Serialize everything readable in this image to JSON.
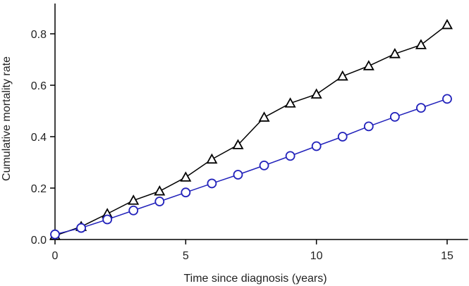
{
  "chart_data": {
    "type": "line",
    "title": "",
    "xlabel": "Time since diagnosis (years)",
    "ylabel": "Cumulative mortality rate",
    "xlim": [
      0,
      15.8
    ],
    "ylim": [
      0,
      0.93
    ],
    "x_ticks": [
      0,
      5,
      10,
      15
    ],
    "x_tick_labels": [
      "0",
      "5",
      "10",
      "15"
    ],
    "y_ticks": [
      0,
      0.2,
      0.4,
      0.6,
      0.8
    ],
    "y_tick_labels": [
      "0.0",
      "0.2",
      "0.4",
      "0.6",
      "0.8"
    ],
    "grid": false,
    "series": [
      {
        "marker": "triangle",
        "color": "#000000",
        "x": [
          0,
          1,
          2,
          3,
          4,
          5,
          6,
          7,
          8,
          9,
          10,
          11,
          12,
          13,
          14,
          15
        ],
        "values": [
          0.015,
          0.05,
          0.1,
          0.152,
          0.188,
          0.242,
          0.312,
          0.368,
          0.475,
          0.53,
          0.565,
          0.635,
          0.675,
          0.722,
          0.757,
          0.835
        ]
      },
      {
        "marker": "circle",
        "color": "#2222bb",
        "x": [
          0,
          1,
          2,
          3,
          4,
          5,
          6,
          7,
          8,
          9,
          10,
          11,
          12,
          13,
          14,
          15
        ],
        "values": [
          0.02,
          0.045,
          0.078,
          0.113,
          0.148,
          0.183,
          0.218,
          0.252,
          0.288,
          0.325,
          0.363,
          0.4,
          0.44,
          0.477,
          0.512,
          0.547
        ]
      }
    ]
  }
}
